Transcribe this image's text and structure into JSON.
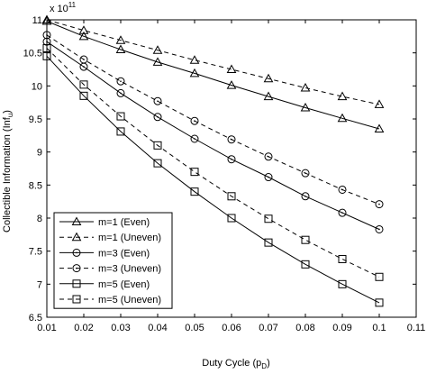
{
  "chart_data": {
    "type": "line",
    "title": "",
    "xlabel": "Duty Cycle (p_D)",
    "ylabel": "Collectible Information (Inf_u)",
    "y_multiplier": "x 10^11",
    "xlim": [
      0.01,
      0.11
    ],
    "ylim": [
      6.5,
      11
    ],
    "x_ticks": [
      0.01,
      0.02,
      0.03,
      0.04,
      0.05,
      0.06,
      0.07,
      0.08,
      0.09,
      0.1,
      0.11
    ],
    "x_tick_labels": [
      "0.01",
      "0.02",
      "0.03",
      "0.04",
      "0.05",
      "0.06",
      "0.07",
      "0.08",
      "0.09",
      "0.1",
      "0.11"
    ],
    "y_ticks": [
      6.5,
      7,
      7.5,
      8,
      8.5,
      9,
      9.5,
      10,
      10.5,
      11
    ],
    "y_tick_labels": [
      "6.5",
      "7",
      "7.5",
      "8",
      "8.5",
      "9",
      "9.5",
      "10",
      "10.5",
      "11"
    ],
    "grid": false,
    "legend_position": "bottom-left",
    "x": [
      0.01,
      0.02,
      0.03,
      0.04,
      0.05,
      0.06,
      0.07,
      0.08,
      0.09,
      0.1
    ],
    "series": [
      {
        "name": "m=1 (Even)",
        "marker": "triangle",
        "dash": "solid",
        "values": [
          10.98,
          10.75,
          10.55,
          10.36,
          10.19,
          10.01,
          9.84,
          9.67,
          9.51,
          9.35
        ]
      },
      {
        "name": "m=1 (Uneven)",
        "marker": "triangle",
        "dash": "dashed",
        "values": [
          11.0,
          10.84,
          10.69,
          10.54,
          10.39,
          10.25,
          10.11,
          9.97,
          9.84,
          9.72
        ]
      },
      {
        "name": "m=3 (Even)",
        "marker": "circle",
        "dash": "solid",
        "values": [
          10.67,
          10.29,
          9.89,
          9.53,
          9.2,
          8.89,
          8.62,
          8.33,
          8.08,
          7.83
        ]
      },
      {
        "name": "m=3 (Uneven)",
        "marker": "circle",
        "dash": "dashed",
        "values": [
          10.77,
          10.4,
          10.07,
          9.77,
          9.47,
          9.19,
          8.93,
          8.68,
          8.43,
          8.21
        ]
      },
      {
        "name": "m=5 (Even)",
        "marker": "square",
        "dash": "solid",
        "values": [
          10.45,
          9.85,
          9.31,
          8.83,
          8.4,
          8.0,
          7.63,
          7.3,
          7.0,
          6.72
        ]
      },
      {
        "name": "m=5 (Uneven)",
        "marker": "square",
        "dash": "dashed",
        "values": [
          10.57,
          10.02,
          9.54,
          9.1,
          8.7,
          8.33,
          7.99,
          7.67,
          7.38,
          7.11
        ]
      }
    ]
  }
}
